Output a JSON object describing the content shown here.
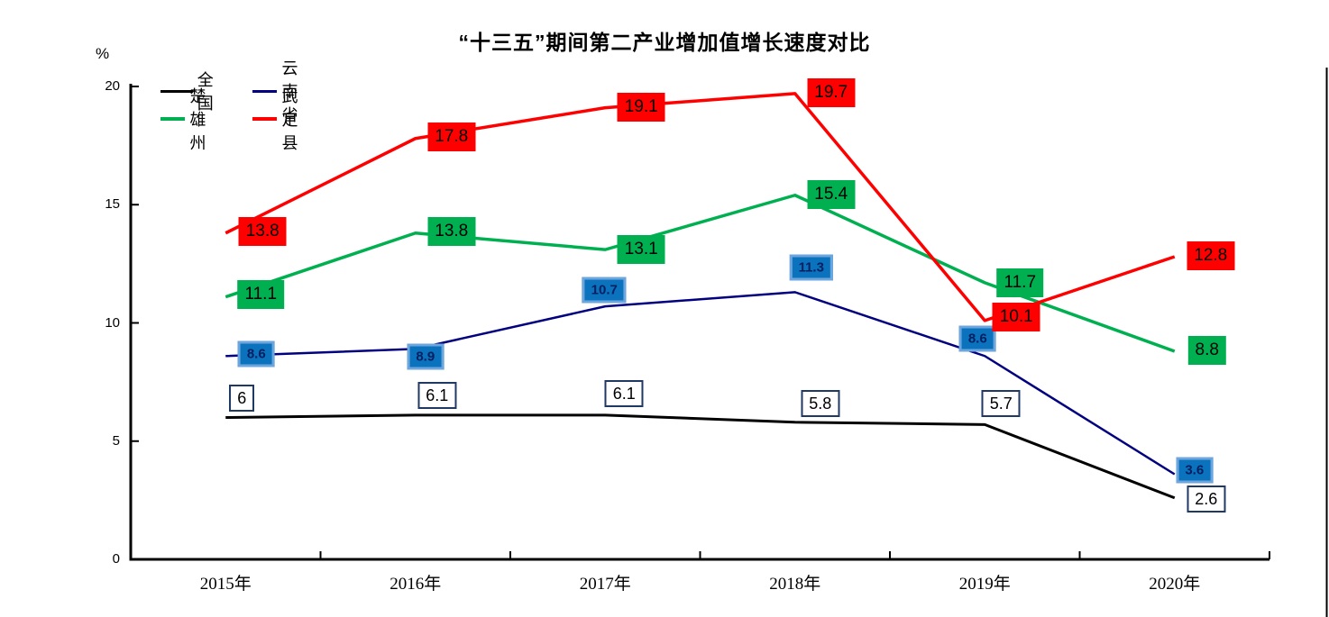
{
  "chart_data": {
    "type": "line",
    "title": "“十三五”期间第二产业增加值增长速度对比",
    "y_unit": "%",
    "xlabel": "",
    "ylabel": "%",
    "categories": [
      "2015年",
      "2016年",
      "2017年",
      "2018年",
      "2019年",
      "2020年"
    ],
    "yticks": [
      0,
      5,
      10,
      15,
      20
    ],
    "ylim": [
      0,
      20
    ],
    "grid": false,
    "legend_position": "top-left-inside",
    "series": [
      {
        "name": "全　国",
        "key": "national",
        "color": "#000000",
        "line_width": 3,
        "values": [
          6,
          6.1,
          6.1,
          5.8,
          5.7,
          2.6
        ],
        "label_style": {
          "bg": "#FFFFFF",
          "border": "#1F3864",
          "text": "#000000",
          "bold": false
        },
        "label_offsets": [
          [
            18,
            -22
          ],
          [
            24,
            -22
          ],
          [
            21,
            -24
          ],
          [
            28,
            -21
          ],
          [
            18,
            -23
          ],
          [
            35,
            1
          ]
        ]
      },
      {
        "name": "云南省",
        "key": "yunnan",
        "color": "#000080",
        "line_width": 2.5,
        "values": [
          8.6,
          8.9,
          10.7,
          11.3,
          8.6,
          3.6
        ],
        "label_style": {
          "bg": "#0B72BE",
          "border": "#6CA6DD",
          "text": "#002060",
          "bold": true
        },
        "label_offsets": [
          [
            34,
            -2
          ],
          [
            11,
            9
          ],
          [
            -1,
            -18
          ],
          [
            18,
            -27
          ],
          [
            -8,
            -19
          ],
          [
            22,
            -5
          ]
        ]
      },
      {
        "name": "楚雄州",
        "key": "chuxiong",
        "color": "#00B050",
        "line_width": 3.5,
        "values": [
          11.1,
          13.8,
          13.1,
          15.4,
          11.7,
          8.8
        ],
        "label_style": {
          "bg": "#00B050",
          "border": "#00B050",
          "text": "#000000",
          "bold": false
        },
        "label_offsets": [
          [
            39,
            -3
          ],
          [
            40,
            -2
          ],
          [
            40,
            0
          ],
          [
            40,
            -1
          ],
          [
            39,
            0
          ],
          [
            36,
            -1
          ]
        ]
      },
      {
        "name": "武定县",
        "key": "wuding",
        "color": "#FF0000",
        "line_width": 3.5,
        "values": [
          13.8,
          17.8,
          19.1,
          19.7,
          10.1,
          12.8
        ],
        "label_style": {
          "bg": "#FF0000",
          "border": "#FF0000",
          "text": "#000000",
          "bold": false
        },
        "label_offsets": [
          [
            41,
            -2
          ],
          [
            40,
            -2
          ],
          [
            40,
            -1
          ],
          [
            40,
            -1
          ],
          [
            35,
            -4
          ],
          [
            40,
            -1
          ]
        ]
      }
    ]
  },
  "legend": {
    "items": [
      {
        "label": "全　国",
        "color": "#000000"
      },
      {
        "label": "云南省",
        "color": "#000080"
      },
      {
        "label": "楚雄州",
        "color": "#00B050"
      },
      {
        "label": "武定县",
        "color": "#FF0000"
      }
    ]
  }
}
